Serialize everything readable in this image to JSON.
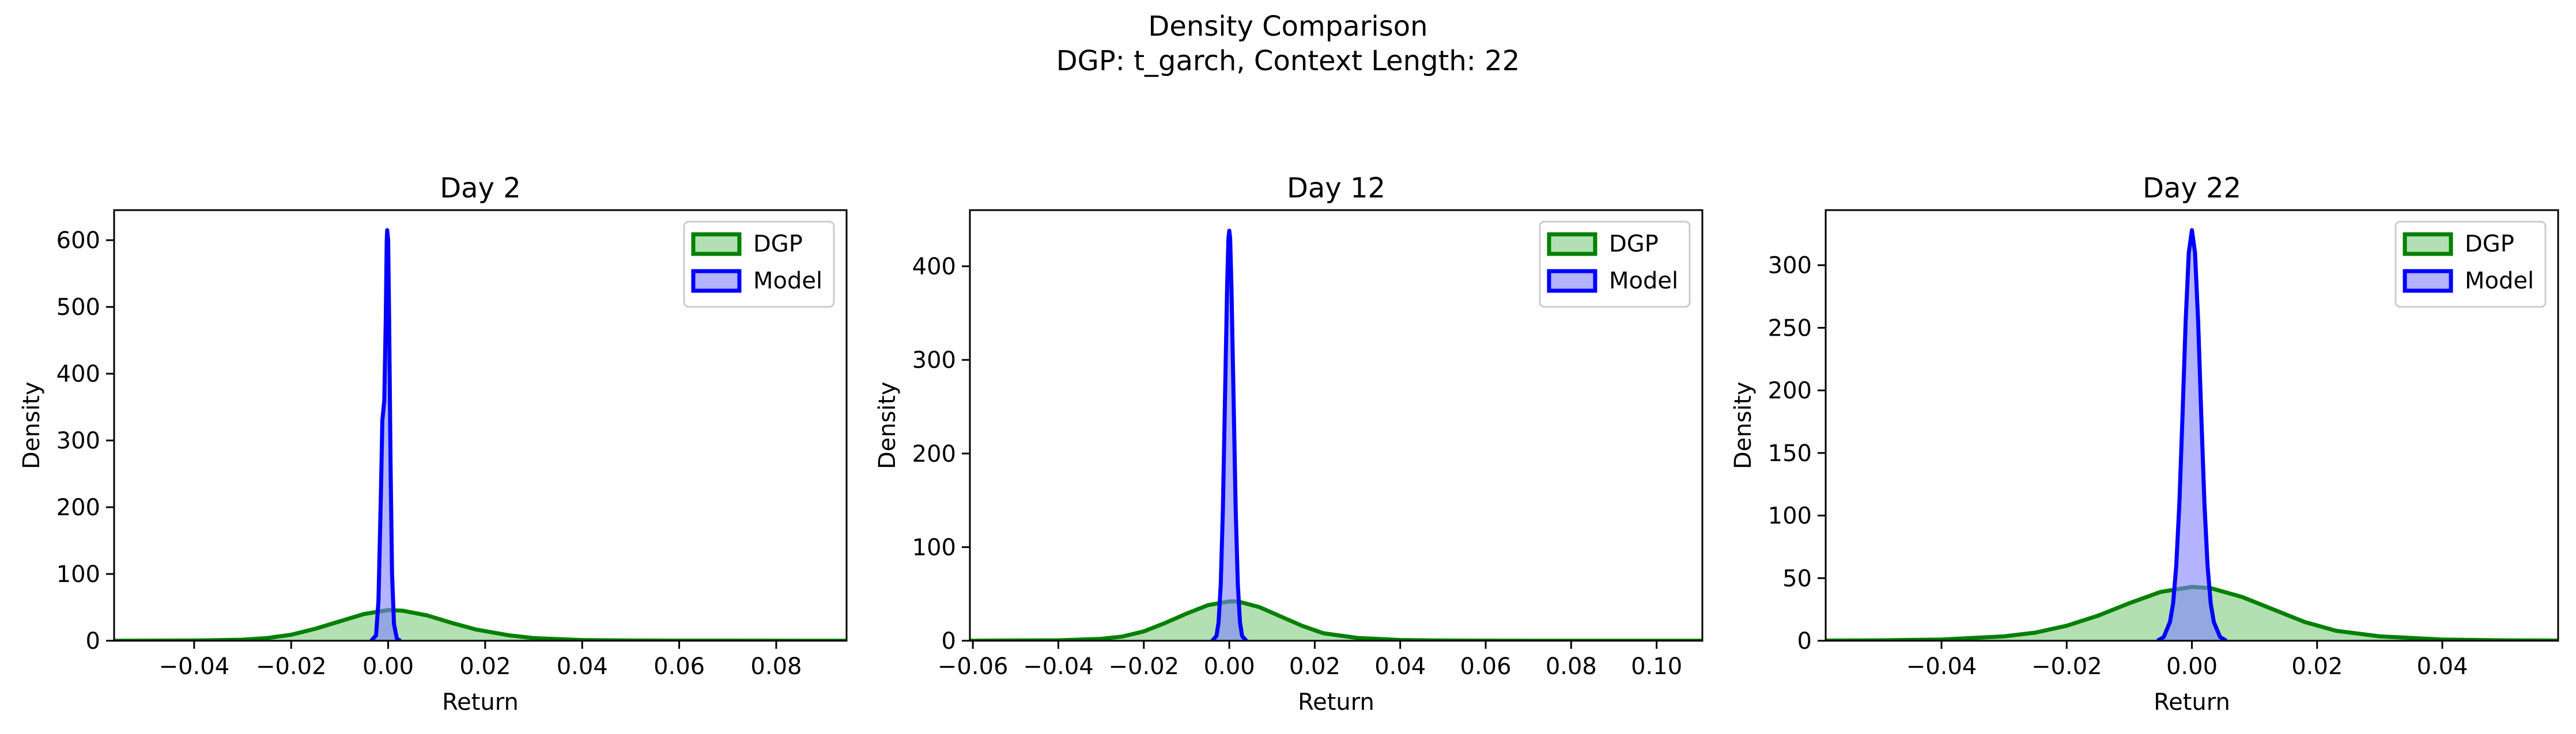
{
  "figure": {
    "title": "Density Comparison",
    "subtitle": "DGP: t_garch, Context Length: 22"
  },
  "colors": {
    "dgp_line": "#008000",
    "dgp_fill": "#7fcc7f",
    "model_line": "#0000ff",
    "model_fill": "#8080ff",
    "axis": "#000000"
  },
  "chart_data": [
    {
      "type": "area",
      "title": "Day 2",
      "xlabel": "Return",
      "ylabel": "Density",
      "xlim": [
        -0.0565,
        0.0945
      ],
      "ylim": [
        0,
        645
      ],
      "xticks": [
        -0.04,
        -0.02,
        0.0,
        0.02,
        0.04,
        0.06,
        0.08
      ],
      "yticks": [
        0,
        100,
        200,
        300,
        400,
        500,
        600
      ],
      "legend": "top-right",
      "series": [
        {
          "name": "DGP",
          "points": [
            [
              -0.0565,
              0.0
            ],
            [
              -0.04,
              0.3
            ],
            [
              -0.03,
              1.6
            ],
            [
              -0.025,
              4
            ],
            [
              -0.02,
              9
            ],
            [
              -0.015,
              18
            ],
            [
              -0.01,
              29
            ],
            [
              -0.005,
              40
            ],
            [
              0.0,
              46
            ],
            [
              0.003,
              45
            ],
            [
              0.008,
              38
            ],
            [
              0.013,
              27
            ],
            [
              0.018,
              17
            ],
            [
              0.025,
              8
            ],
            [
              0.03,
              4
            ],
            [
              0.04,
              1.0
            ],
            [
              0.05,
              0.3
            ],
            [
              0.06,
              0.1
            ],
            [
              0.0945,
              0.0
            ]
          ]
        },
        {
          "name": "Model",
          "points": [
            [
              -0.0035,
              0
            ],
            [
              -0.0025,
              8
            ],
            [
              -0.002,
              60
            ],
            [
              -0.0015,
              220
            ],
            [
              -0.0012,
              330
            ],
            [
              -0.001,
              345
            ],
            [
              -0.0008,
              360
            ],
            [
              -0.0005,
              480
            ],
            [
              -0.0003,
              600
            ],
            [
              -0.0002,
              615
            ],
            [
              0.0,
              600
            ],
            [
              0.0002,
              480
            ],
            [
              0.0005,
              260
            ],
            [
              0.0008,
              100
            ],
            [
              0.0012,
              25
            ],
            [
              0.0018,
              3
            ],
            [
              0.0025,
              0
            ]
          ]
        }
      ]
    },
    {
      "type": "area",
      "title": "Day 12",
      "xlabel": "Return",
      "ylabel": "Density",
      "xlim": [
        -0.0607,
        0.1107
      ],
      "ylim": [
        0,
        460
      ],
      "xticks": [
        -0.06,
        -0.04,
        -0.02,
        0.0,
        0.02,
        0.04,
        0.06,
        0.08,
        0.1
      ],
      "yticks": [
        0,
        100,
        200,
        300,
        400
      ],
      "legend": "top-right",
      "series": [
        {
          "name": "DGP",
          "points": [
            [
              -0.0607,
              0.0
            ],
            [
              -0.04,
              0.5
            ],
            [
              -0.03,
              2
            ],
            [
              -0.025,
              4.5
            ],
            [
              -0.02,
              10
            ],
            [
              -0.015,
              19
            ],
            [
              -0.01,
              29
            ],
            [
              -0.005,
              38
            ],
            [
              0.0,
              42
            ],
            [
              0.002,
              42
            ],
            [
              0.007,
              36
            ],
            [
              0.012,
              26
            ],
            [
              0.017,
              16
            ],
            [
              0.022,
              8
            ],
            [
              0.03,
              3
            ],
            [
              0.04,
              0.8
            ],
            [
              0.05,
              0.2
            ],
            [
              0.06,
              0.05
            ],
            [
              0.1107,
              0.0
            ]
          ]
        },
        {
          "name": "Model",
          "points": [
            [
              -0.004,
              0
            ],
            [
              -0.003,
              5
            ],
            [
              -0.0025,
              20
            ],
            [
              -0.002,
              60
            ],
            [
              -0.0015,
              140
            ],
            [
              -0.001,
              260
            ],
            [
              -0.0005,
              380
            ],
            [
              -0.0002,
              430
            ],
            [
              0.0,
              438
            ],
            [
              0.0002,
              430
            ],
            [
              0.0005,
              380
            ],
            [
              0.001,
              260
            ],
            [
              0.0015,
              140
            ],
            [
              0.002,
              60
            ],
            [
              0.0025,
              20
            ],
            [
              0.003,
              5
            ],
            [
              0.004,
              0
            ]
          ]
        }
      ]
    },
    {
      "type": "area",
      "title": "Day 22",
      "xlabel": "Return",
      "ylabel": "Density",
      "xlim": [
        -0.0585,
        0.0585
      ],
      "ylim": [
        0,
        344
      ],
      "xticks": [
        -0.04,
        -0.02,
        0.0,
        0.02,
        0.04
      ],
      "yticks": [
        0,
        50,
        100,
        150,
        200,
        250,
        300
      ],
      "legend": "top-right",
      "series": [
        {
          "name": "DGP",
          "points": [
            [
              -0.0585,
              0.1
            ],
            [
              -0.05,
              0.3
            ],
            [
              -0.04,
              1
            ],
            [
              -0.03,
              3.5
            ],
            [
              -0.025,
              6.5
            ],
            [
              -0.02,
              12
            ],
            [
              -0.015,
              20
            ],
            [
              -0.01,
              30
            ],
            [
              -0.005,
              39
            ],
            [
              0.0,
              43
            ],
            [
              0.003,
              42
            ],
            [
              0.008,
              35
            ],
            [
              0.013,
              25
            ],
            [
              0.018,
              15
            ],
            [
              0.023,
              8
            ],
            [
              0.03,
              3.5
            ],
            [
              0.04,
              1
            ],
            [
              0.05,
              0.3
            ],
            [
              0.0585,
              0.1
            ]
          ]
        },
        {
          "name": "Model",
          "points": [
            [
              -0.0055,
              0
            ],
            [
              -0.0045,
              3
            ],
            [
              -0.0035,
              15
            ],
            [
              -0.003,
              30
            ],
            [
              -0.0025,
              60
            ],
            [
              -0.002,
              110
            ],
            [
              -0.0015,
              180
            ],
            [
              -0.001,
              255
            ],
            [
              -0.0005,
              310
            ],
            [
              0.0,
              328
            ],
            [
              0.0005,
              310
            ],
            [
              0.001,
              255
            ],
            [
              0.0015,
              180
            ],
            [
              0.002,
              110
            ],
            [
              0.0025,
              60
            ],
            [
              0.003,
              30
            ],
            [
              0.0035,
              15
            ],
            [
              0.0045,
              3
            ],
            [
              0.0055,
              0
            ]
          ]
        }
      ]
    }
  ]
}
